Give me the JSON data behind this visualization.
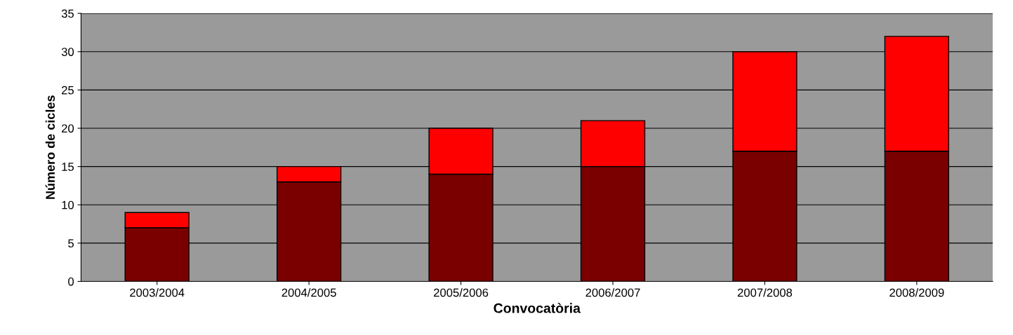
{
  "chart_data": {
    "type": "bar",
    "stacked": true,
    "xlabel": "Convocatòria",
    "ylabel": "Número de cicles",
    "categories": [
      "2003/2004",
      "2004/2005",
      "2005/2006",
      "2006/2007",
      "2007/2008",
      "2008/2009"
    ],
    "series": [
      {
        "color": "#7a0000",
        "values": [
          7,
          13,
          14,
          15,
          17,
          17
        ]
      },
      {
        "color": "#ff0000",
        "values": [
          2,
          2,
          6,
          6,
          13,
          15
        ]
      }
    ],
    "ylim": [
      0,
      35
    ],
    "yticks": [
      0,
      5,
      10,
      15,
      20,
      25,
      30,
      35
    ],
    "grid": "y",
    "legend": false
  }
}
